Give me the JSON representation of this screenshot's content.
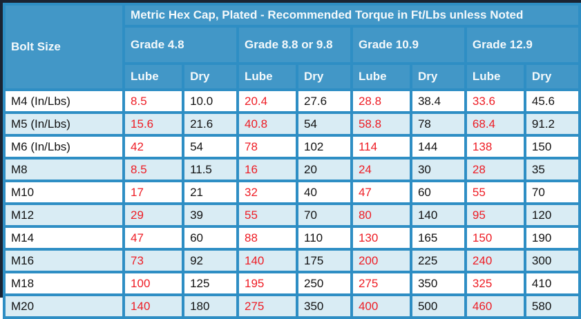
{
  "colors": {
    "outer_dark": "#1a2332",
    "header_blue": "#4297c7",
    "border_blue": "#2e8ec4",
    "stripe_blue": "#d9ecf4",
    "row_white": "#ffffff",
    "lube_red": "#ee1c24",
    "body_text": "#111111",
    "header_text": "#f4f9fb"
  },
  "chart_data": {
    "type": "table",
    "title": "Metric Hex Cap, Plated - Recommended Torque in Ft/Lbs unless Noted",
    "bolt_size_header": "Bolt Size",
    "column_groups": [
      {
        "label": "Grade 4.8",
        "columns": [
          "Lube",
          "Dry"
        ]
      },
      {
        "label": "Grade 8.8 or 9.8",
        "columns": [
          "Lube",
          "Dry"
        ]
      },
      {
        "label": "Grade 10.9",
        "columns": [
          "Lube",
          "Dry"
        ]
      },
      {
        "label": "Grade 12.9",
        "columns": [
          "Lube",
          "Dry"
        ]
      }
    ],
    "value_styles": {
      "lube_color": "#ee1c24",
      "dry_color": "#111111"
    },
    "rows": [
      {
        "bolt": "M4 (In/Lbs)",
        "values": [
          "8.5",
          "10.0",
          "20.4",
          "27.6",
          "28.8",
          "38.4",
          "33.6",
          "45.6"
        ]
      },
      {
        "bolt": "M5 (In/Lbs)",
        "values": [
          "15.6",
          "21.6",
          "40.8",
          "54",
          "58.8",
          "78",
          "68.4",
          "91.2"
        ]
      },
      {
        "bolt": "M6 (In/Lbs)",
        "values": [
          "42",
          "54",
          "78",
          "102",
          "114",
          "144",
          "138",
          "150"
        ]
      },
      {
        "bolt": "M8",
        "values": [
          "8.5",
          "11.5",
          "16",
          "20",
          "24",
          "30",
          "28",
          "35"
        ]
      },
      {
        "bolt": "M10",
        "values": [
          "17",
          "21",
          "32",
          "40",
          "47",
          "60",
          "55",
          "70"
        ]
      },
      {
        "bolt": "M12",
        "values": [
          "29",
          "39",
          "55",
          "70",
          "80",
          "140",
          "95",
          "120"
        ]
      },
      {
        "bolt": "M14",
        "values": [
          "47",
          "60",
          "88",
          "110",
          "130",
          "165",
          "150",
          "190"
        ]
      },
      {
        "bolt": "M16",
        "values": [
          "73",
          "92",
          "140",
          "175",
          "200",
          "225",
          "240",
          "300"
        ]
      },
      {
        "bolt": "M18",
        "values": [
          "100",
          "125",
          "195",
          "250",
          "275",
          "350",
          "325",
          "410"
        ]
      },
      {
        "bolt": "M20",
        "values": [
          "140",
          "180",
          "275",
          "350",
          "400",
          "500",
          "460",
          "580"
        ]
      }
    ]
  }
}
